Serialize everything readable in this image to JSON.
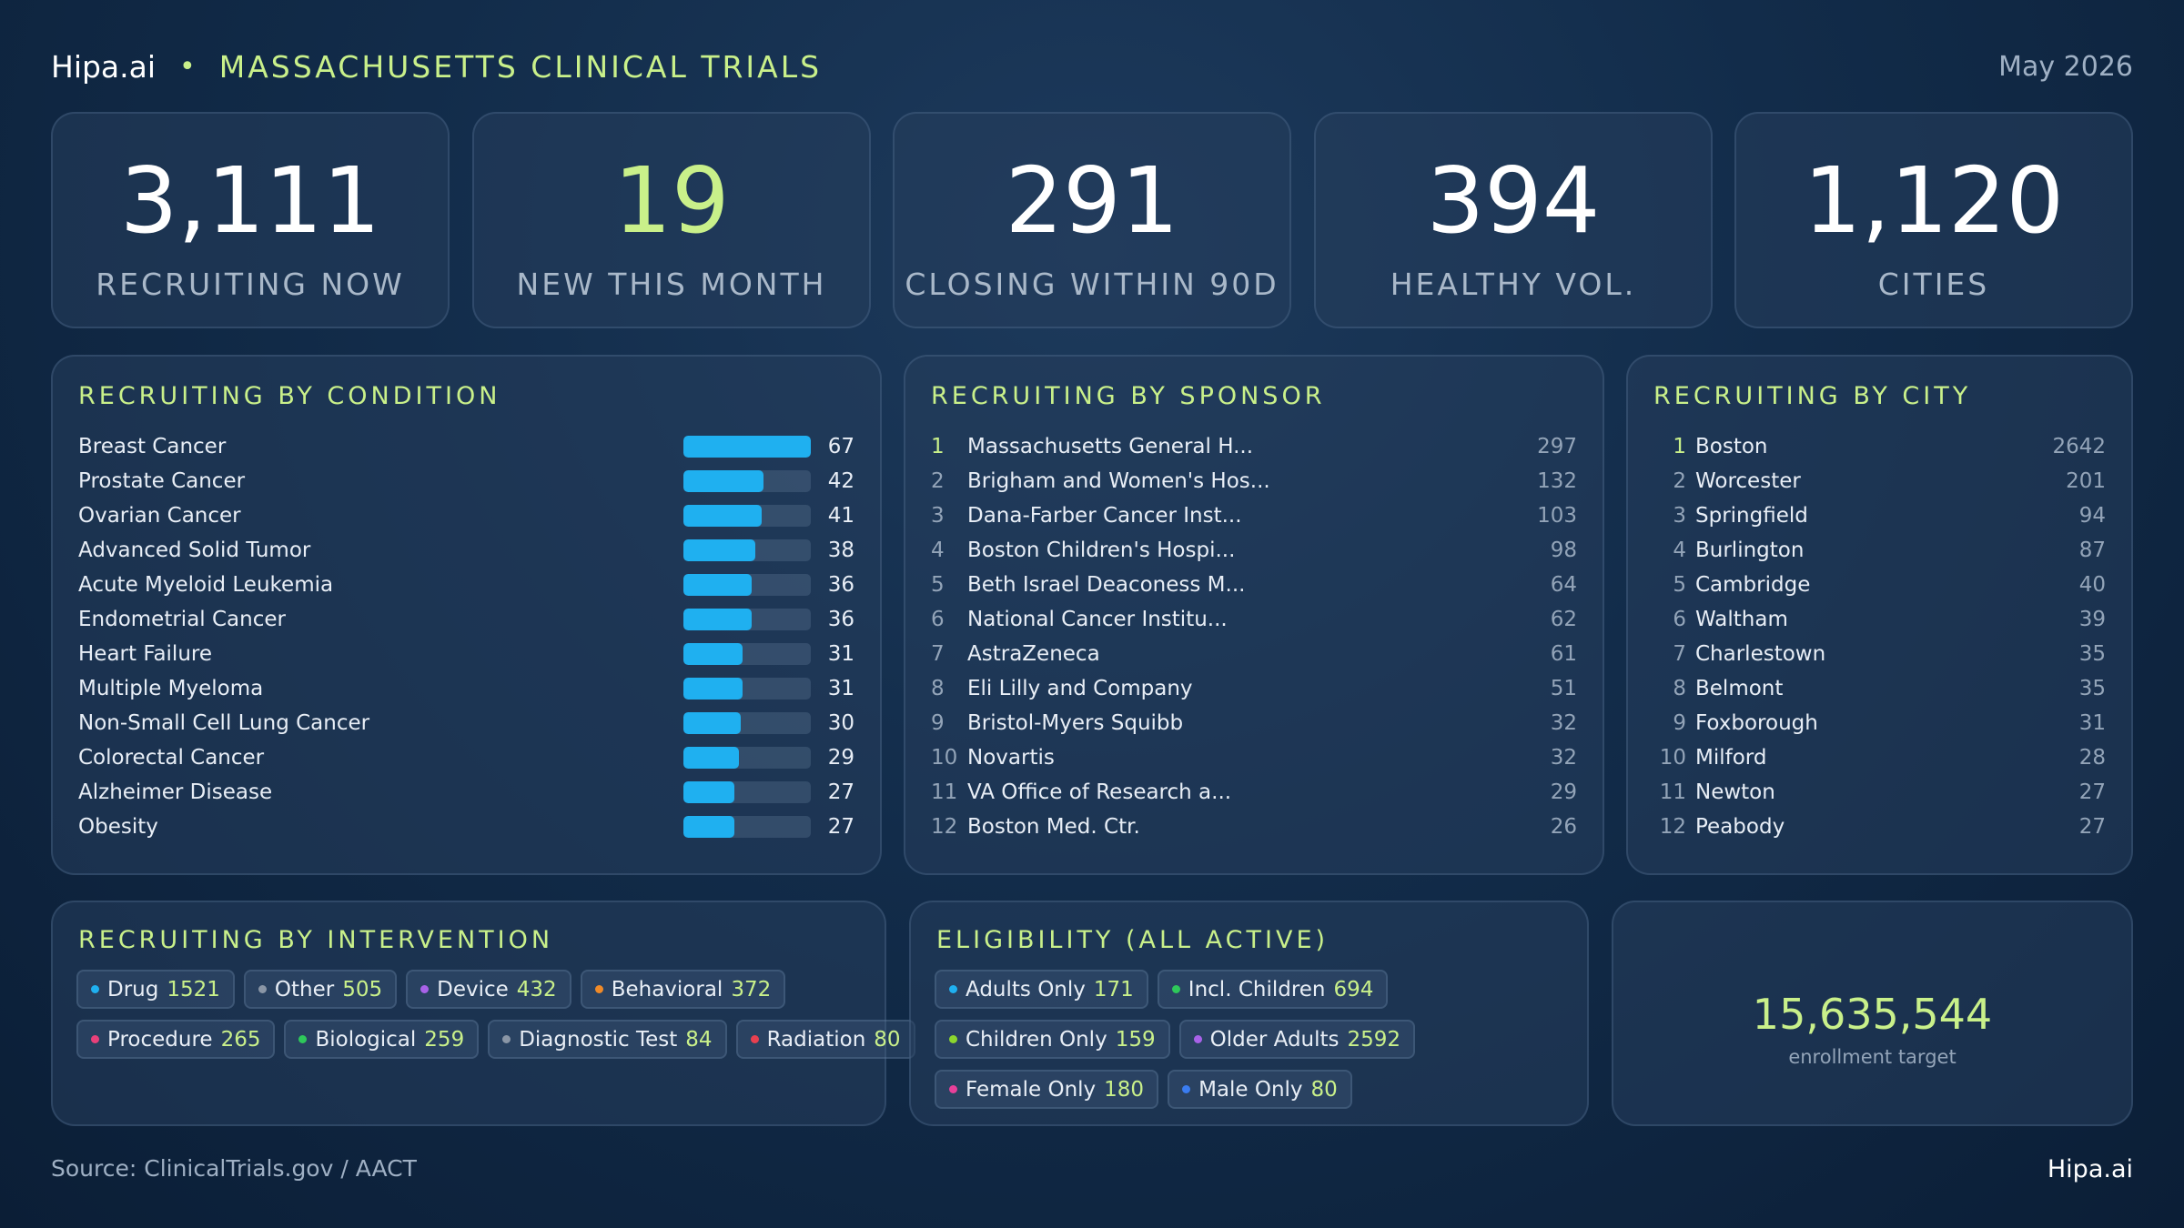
{
  "header": {
    "brand": "Hipa.ai",
    "separator": "•",
    "title": "MASSACHUSETTS CLINICAL TRIALS",
    "date": "May 2026"
  },
  "stats": [
    {
      "value": "3,111",
      "label": "RECRUITING NOW"
    },
    {
      "value": "19",
      "label": "NEW THIS MONTH"
    },
    {
      "value": "291",
      "label": "CLOSING WITHIN 90D"
    },
    {
      "value": "394",
      "label": "HEALTHY VOL."
    },
    {
      "value": "1,120",
      "label": "CITIES"
    }
  ],
  "condition": {
    "title": "RECRUITING BY CONDITION",
    "max": 67,
    "items": [
      {
        "label": "Breast Cancer",
        "value": 67
      },
      {
        "label": "Prostate Cancer",
        "value": 42
      },
      {
        "label": "Ovarian Cancer",
        "value": 41
      },
      {
        "label": "Advanced Solid Tumor",
        "value": 38
      },
      {
        "label": "Acute Myeloid Leukemia",
        "value": 36
      },
      {
        "label": "Endometrial Cancer",
        "value": 36
      },
      {
        "label": "Heart Failure",
        "value": 31
      },
      {
        "label": "Multiple Myeloma",
        "value": 31
      },
      {
        "label": "Non-Small Cell Lung Cancer",
        "value": 30
      },
      {
        "label": "Colorectal Cancer",
        "value": 29
      },
      {
        "label": "Alzheimer Disease",
        "value": 27
      },
      {
        "label": "Obesity",
        "value": 27
      }
    ]
  },
  "sponsor": {
    "title": "RECRUITING BY SPONSOR",
    "items": [
      {
        "rank": "1",
        "name": "Massachusetts General H...",
        "count": "297"
      },
      {
        "rank": "2",
        "name": "Brigham and Women's Hos...",
        "count": "132"
      },
      {
        "rank": "3",
        "name": "Dana-Farber Cancer Inst...",
        "count": "103"
      },
      {
        "rank": "4",
        "name": "Boston Children's Hospi...",
        "count": "98"
      },
      {
        "rank": "5",
        "name": "Beth Israel Deaconess M...",
        "count": "64"
      },
      {
        "rank": "6",
        "name": "National Cancer Institu...",
        "count": "62"
      },
      {
        "rank": "7",
        "name": "AstraZeneca",
        "count": "61"
      },
      {
        "rank": "8",
        "name": "Eli Lilly and Company",
        "count": "51"
      },
      {
        "rank": "9",
        "name": "Bristol-Myers Squibb",
        "count": "32"
      },
      {
        "rank": "10",
        "name": "Novartis",
        "count": "32"
      },
      {
        "rank": "11",
        "name": "VA Office of Research a...",
        "count": "29"
      },
      {
        "rank": "12",
        "name": "Boston Med. Ctr.",
        "count": "26"
      }
    ]
  },
  "city": {
    "title": "RECRUITING BY CITY",
    "items": [
      {
        "rank": "1",
        "name": "Boston",
        "count": "2642"
      },
      {
        "rank": "2",
        "name": "Worcester",
        "count": "201"
      },
      {
        "rank": "3",
        "name": "Springfield",
        "count": "94"
      },
      {
        "rank": "4",
        "name": "Burlington",
        "count": "87"
      },
      {
        "rank": "5",
        "name": "Cambridge",
        "count": "40"
      },
      {
        "rank": "6",
        "name": "Waltham",
        "count": "39"
      },
      {
        "rank": "7",
        "name": "Charlestown",
        "count": "35"
      },
      {
        "rank": "8",
        "name": "Belmont",
        "count": "35"
      },
      {
        "rank": "9",
        "name": "Foxborough",
        "count": "31"
      },
      {
        "rank": "10",
        "name": "Milford",
        "count": "28"
      },
      {
        "rank": "11",
        "name": "Newton",
        "count": "27"
      },
      {
        "rank": "12",
        "name": "Peabody",
        "count": "27"
      }
    ]
  },
  "intervention": {
    "title": "RECRUITING BY INTERVENTION",
    "rows": [
      [
        {
          "label": "Drug",
          "value": "1521",
          "color": "#1fb0f0"
        },
        {
          "label": "Other",
          "value": "505",
          "color": "#8a96a6"
        },
        {
          "label": "Device",
          "value": "432",
          "color": "#a862e8"
        },
        {
          "label": "Behavioral",
          "value": "372",
          "color": "#f08a28"
        }
      ],
      [
        {
          "label": "Procedure",
          "value": "265",
          "color": "#e8407a"
        },
        {
          "label": "Biological",
          "value": "259",
          "color": "#2ec85a"
        },
        {
          "label": "Diagnostic Test",
          "value": "84",
          "color": "#8a96a6"
        },
        {
          "label": "Radiation",
          "value": "80",
          "color": "#e84050"
        }
      ]
    ]
  },
  "eligibility": {
    "title": "ELIGIBILITY (ALL ACTIVE)",
    "rows": [
      [
        {
          "label": "Adults Only",
          "value": "171",
          "color": "#1fb0f0"
        },
        {
          "label": "Incl. Children",
          "value": "694",
          "color": "#2ec85a"
        }
      ],
      [
        {
          "label": "Children Only",
          "value": "159",
          "color": "#8cd62e"
        },
        {
          "label": "Older Adults",
          "value": "2592",
          "color": "#a862e8"
        }
      ],
      [
        {
          "label": "Female Only",
          "value": "180",
          "color": "#e8409a"
        },
        {
          "label": "Male Only",
          "value": "80",
          "color": "#3a7cf0"
        }
      ]
    ]
  },
  "target": {
    "value": "15,635,544",
    "label": "enrollment target"
  },
  "footer": {
    "source": "Source: ClinicalTrials.gov / AACT",
    "brand": "Hipa.ai"
  }
}
